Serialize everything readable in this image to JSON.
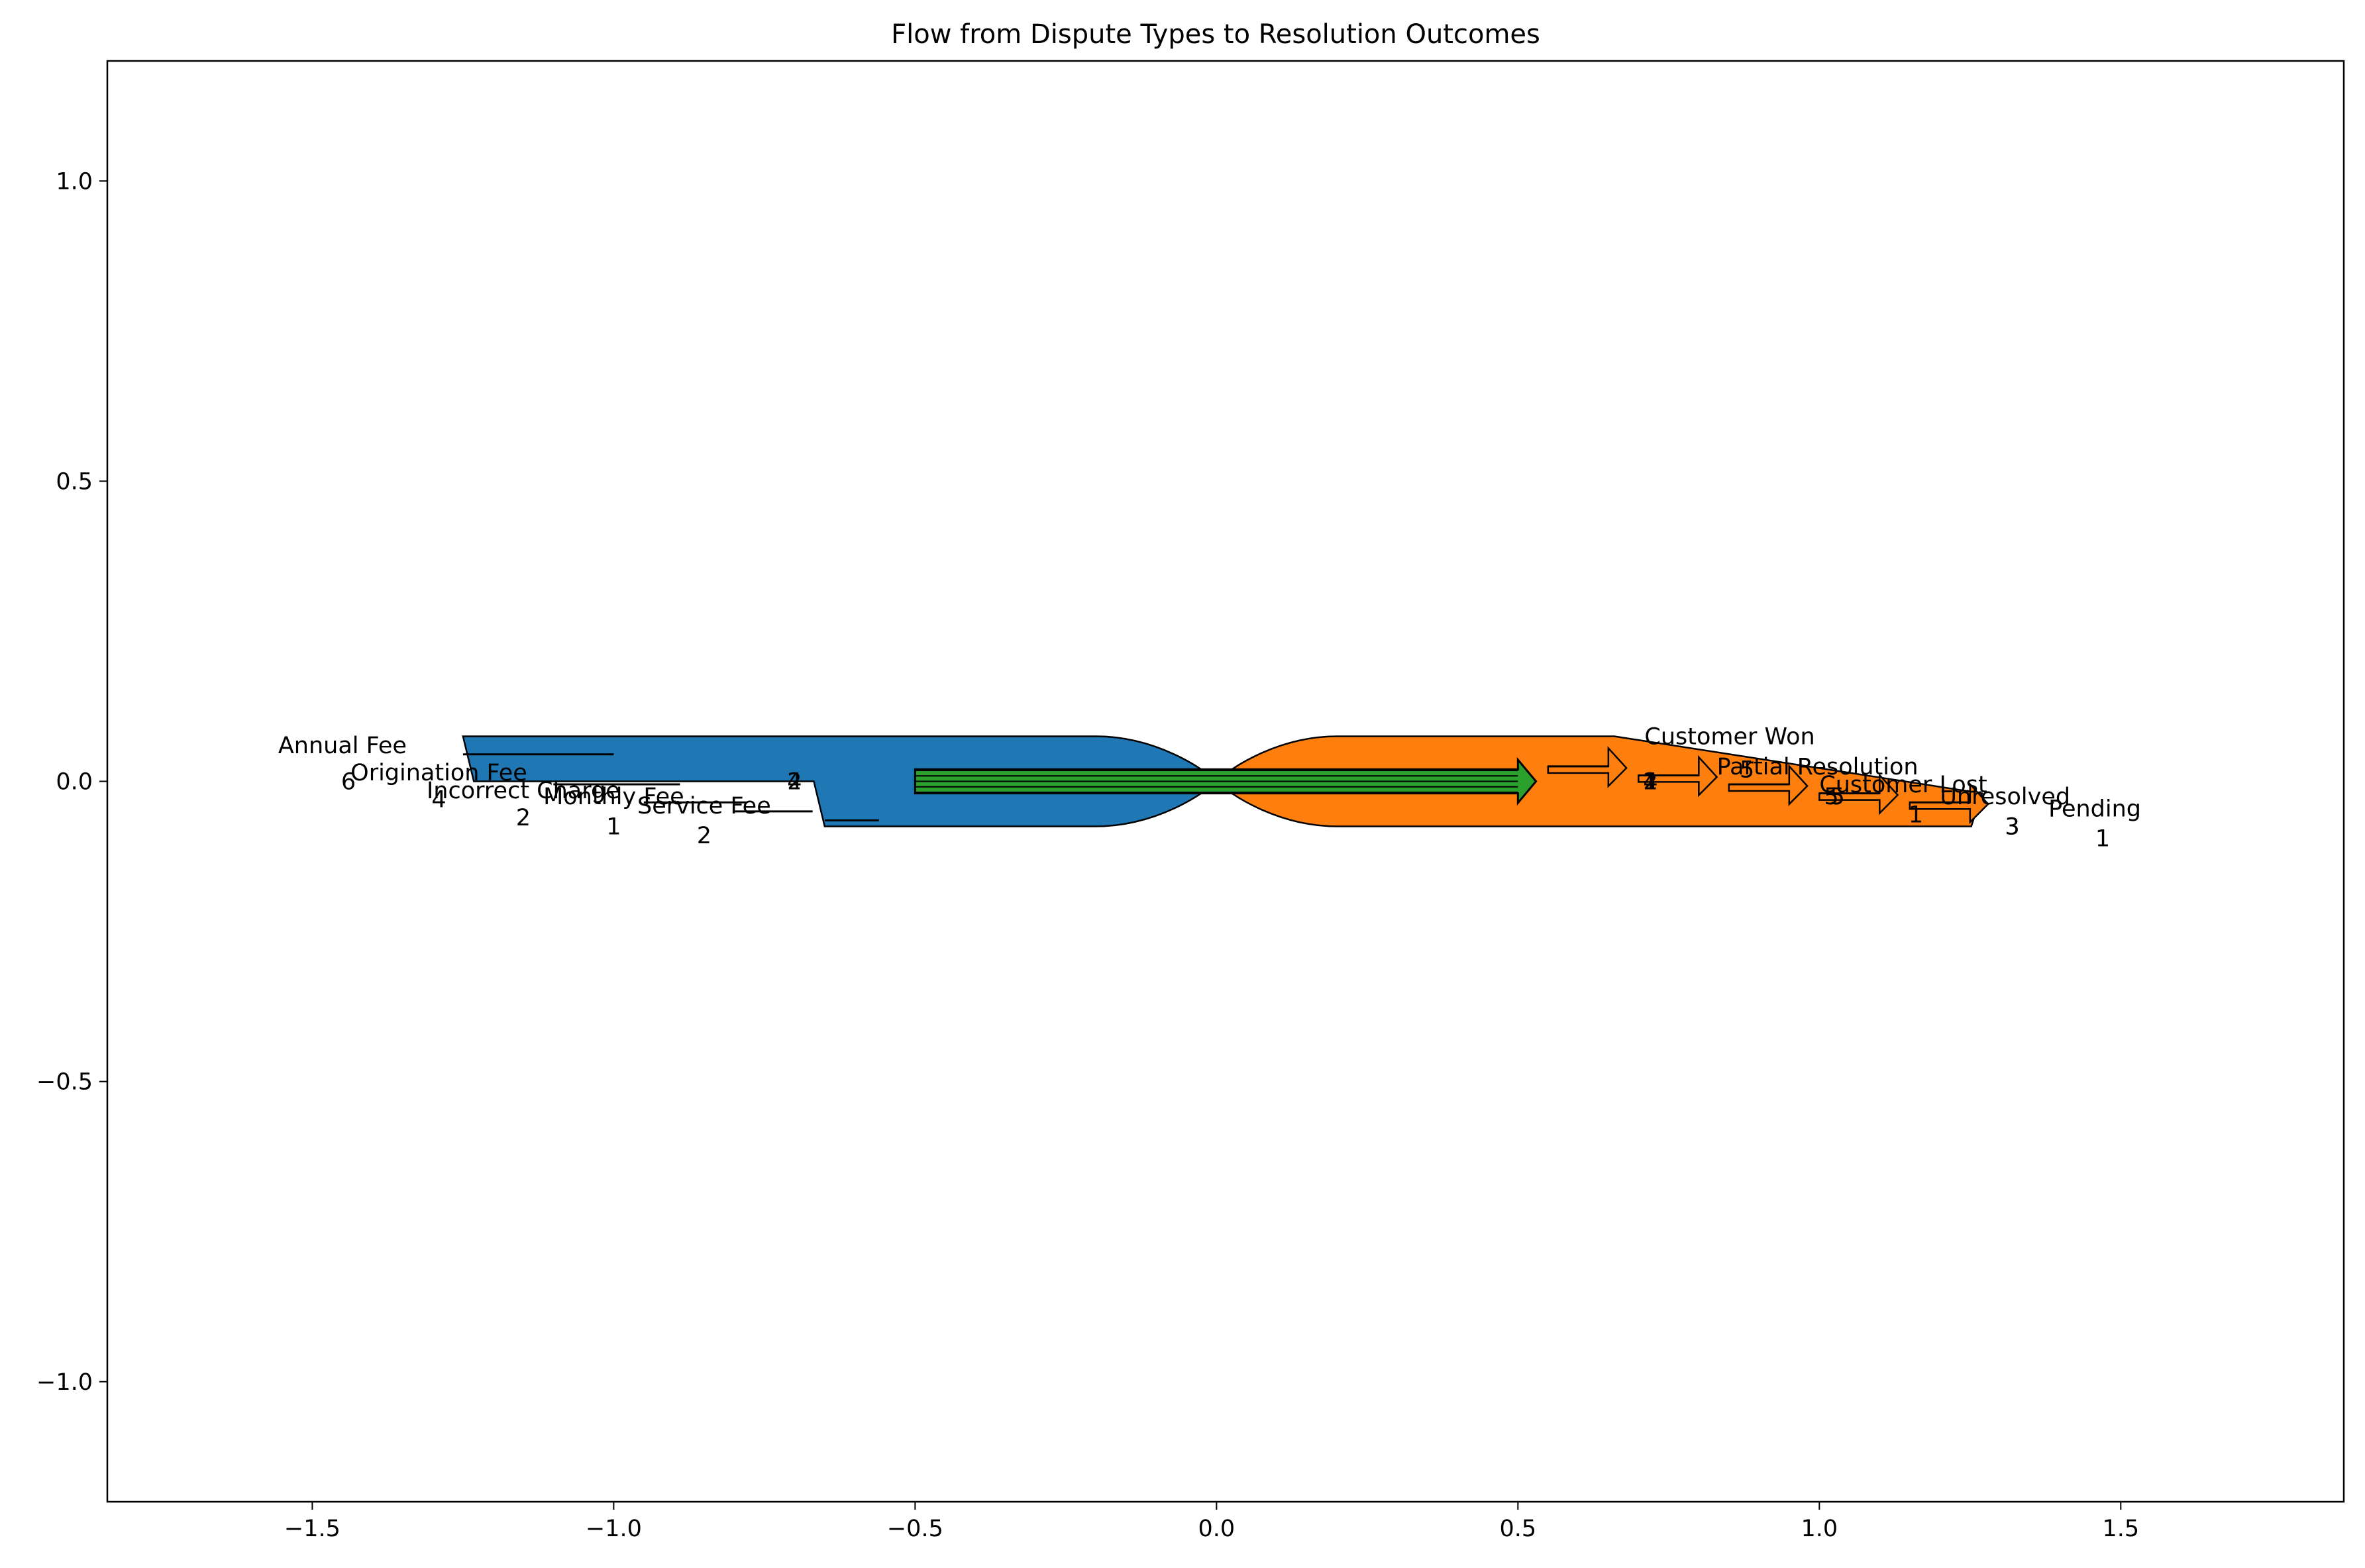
{
  "chart_data": {
    "type": "sankey",
    "title": "Flow from Dispute Types to Resolution Outcomes",
    "xlabel": "",
    "ylabel": "",
    "xlim": [
      -1.84,
      1.87
    ],
    "ylim": [
      -1.2,
      1.2
    ],
    "xticks": [
      -1.5,
      -1.0,
      -0.5,
      0.0,
      0.5,
      1.0,
      1.5
    ],
    "xtick_labels": [
      "−1.5",
      "−1.0",
      "−0.5",
      "0.0",
      "0.5",
      "1.0",
      "1.5"
    ],
    "yticks": [
      1.0,
      0.5,
      0.0,
      -0.5,
      -1.0
    ],
    "ytick_labels": [
      "1.0",
      "0.5",
      "0.0",
      "−0.5",
      "−1.0"
    ],
    "grid": false,
    "sources": [
      {
        "name": "Annual Fee",
        "value": 6,
        "label_x": -1.45,
        "label_y": 0.06,
        "value_x": -1.44,
        "value_y": 0.0
      },
      {
        "name": "Origination Fee",
        "value": 4,
        "label_x": -1.29,
        "label_y": 0.015,
        "value_x": -1.29,
        "value_y": -0.03
      },
      {
        "name": "Incorrect Charge",
        "value": 2,
        "label_x": -1.15,
        "label_y": -0.015,
        "value_x": -1.15,
        "value_y": -0.06
      },
      {
        "name": "Monthly Fee",
        "value": 1,
        "label_x": -1.0,
        "label_y": -0.025,
        "value_x": -1.0,
        "value_y": -0.075
      },
      {
        "name": "Service Fee",
        "value": 2,
        "label_x": -0.85,
        "label_y": -0.04,
        "value_x": -0.85,
        "value_y": -0.09
      }
    ],
    "targets": [
      {
        "name": "Customer Won",
        "value": 5,
        "label_x": 0.71,
        "label_y": 0.075,
        "value_x": 0.88,
        "value_y": 0.02
      },
      {
        "name": "Partial Resolution",
        "value": 5,
        "label_x": 0.83,
        "label_y": 0.025,
        "value_x": 1.02,
        "value_y": -0.025
      },
      {
        "name": "Customer Lost",
        "value": 1,
        "label_x": 1.0,
        "label_y": -0.005,
        "value_x": 1.16,
        "value_y": -0.055
      },
      {
        "name": "Unresolved",
        "value": 3,
        "label_x": 1.2,
        "label_y": -0.025,
        "value_x": 1.32,
        "value_y": -0.075
      },
      {
        "name": "Pending",
        "value": 1,
        "label_x": 1.38,
        "label_y": -0.045,
        "value_x": 1.47,
        "value_y": -0.095
      }
    ],
    "overlay_labels": [
      {
        "text": "2",
        "x": -0.7,
        "y": 0.0
      },
      {
        "text": "4",
        "x": -0.7,
        "y": 0.0
      },
      {
        "text": "1",
        "x": 0.72,
        "y": 0.0
      },
      {
        "text": "2",
        "x": 0.72,
        "y": 0.0
      },
      {
        "text": "4",
        "x": 0.72,
        "y": 0.0
      },
      {
        "text": "5",
        "x": 1.03,
        "y": -0.025
      },
      {
        "text": "3",
        "x": 1.32,
        "y": -0.075
      }
    ],
    "colors": {
      "source_band": "#1f77b4",
      "target_band": "#ff7f0e",
      "link_band": "#2ca02c",
      "edge": "#000000"
    }
  }
}
